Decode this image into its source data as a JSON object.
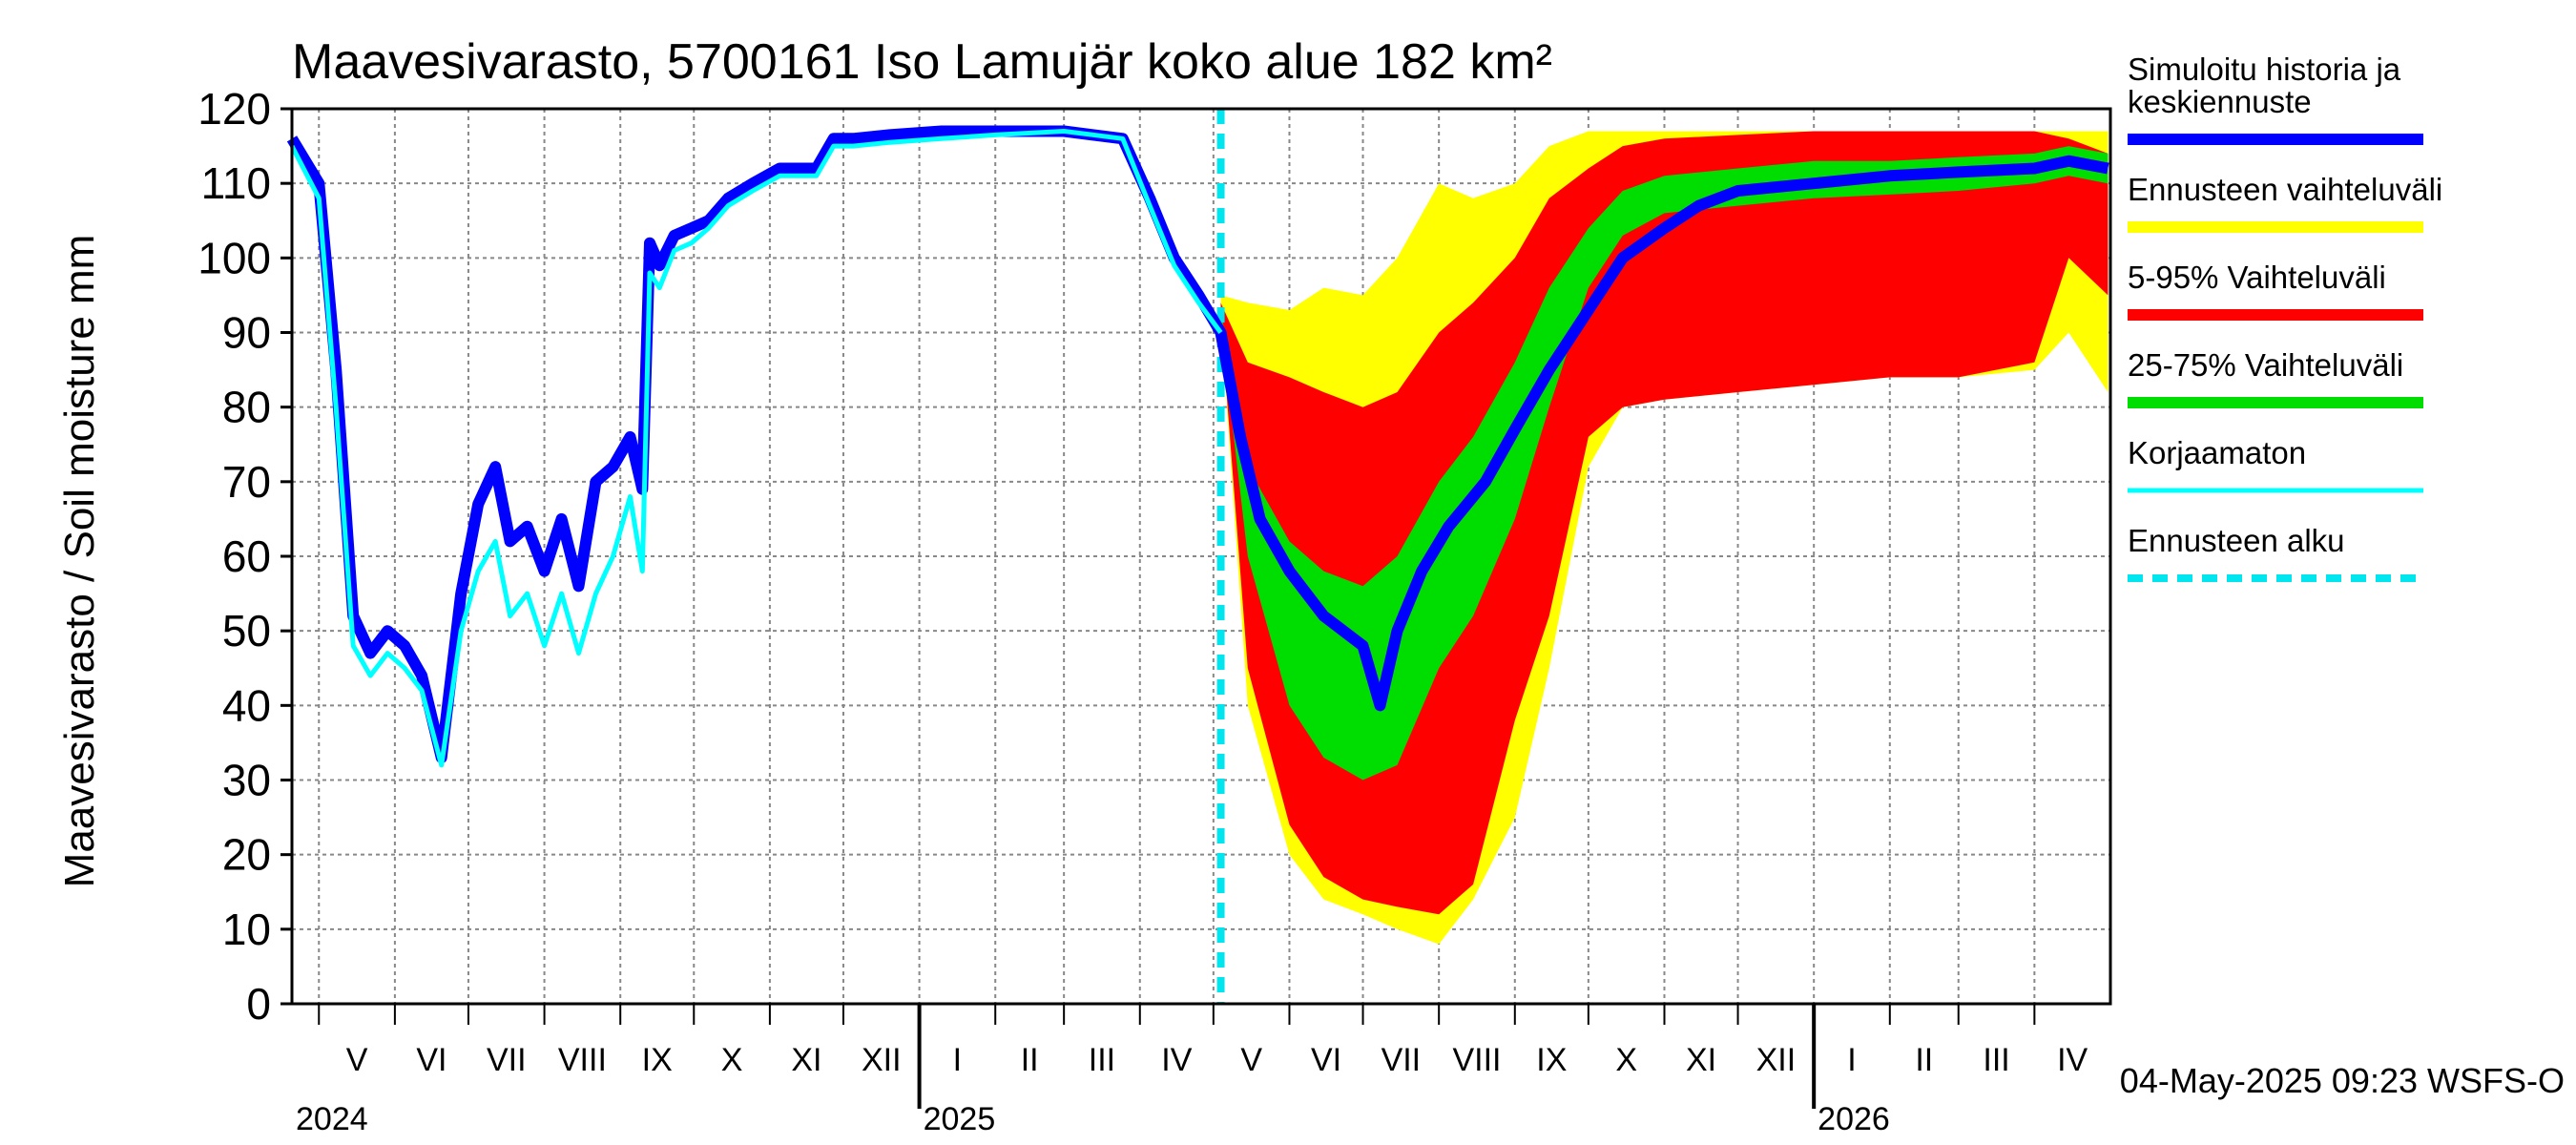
{
  "chart_data": {
    "type": "area",
    "title": "Maavesivarasto, 5700161 Iso Lamujär koko alue 182 km²",
    "ylabel": "Maavesivarasto / Soil moisture   mm",
    "xlabel": "",
    "ylim": [
      0,
      120
    ],
    "yticks": [
      0,
      10,
      20,
      30,
      40,
      50,
      60,
      70,
      80,
      90,
      100,
      110,
      120
    ],
    "xlim": [
      "2024-04-20",
      "2026-05-02"
    ],
    "grid": true,
    "legend_placement": "right",
    "forecast_start": "2025-05-04",
    "timestamp": "04-May-2025 09:23 WSFS-O",
    "months": [
      {
        "label": "V",
        "start": "2024-05-01"
      },
      {
        "label": "VI",
        "start": "2024-06-01"
      },
      {
        "label": "VII",
        "start": "2024-07-01"
      },
      {
        "label": "VIII",
        "start": "2024-08-01"
      },
      {
        "label": "IX",
        "start": "2024-09-01"
      },
      {
        "label": "X",
        "start": "2024-10-01"
      },
      {
        "label": "XI",
        "start": "2024-11-01"
      },
      {
        "label": "XII",
        "start": "2024-12-01"
      },
      {
        "label": "I",
        "start": "2025-01-01"
      },
      {
        "label": "II",
        "start": "2025-02-01"
      },
      {
        "label": "III",
        "start": "2025-03-01"
      },
      {
        "label": "IV",
        "start": "2025-04-01"
      },
      {
        "label": "V",
        "start": "2025-05-01"
      },
      {
        "label": "VI",
        "start": "2025-06-01"
      },
      {
        "label": "VII",
        "start": "2025-07-01"
      },
      {
        "label": "VIII",
        "start": "2025-08-01"
      },
      {
        "label": "IX",
        "start": "2025-09-01"
      },
      {
        "label": "X",
        "start": "2025-10-01"
      },
      {
        "label": "XI",
        "start": "2025-11-01"
      },
      {
        "label": "XII",
        "start": "2025-12-01"
      },
      {
        "label": "I",
        "start": "2026-01-01"
      },
      {
        "label": "II",
        "start": "2026-02-01"
      },
      {
        "label": "III",
        "start": "2026-03-01"
      },
      {
        "label": "IV",
        "start": "2026-04-01"
      }
    ],
    "years": [
      {
        "label": "2024",
        "start": "2024-04-20"
      },
      {
        "label": "2025",
        "start": "2025-01-01"
      },
      {
        "label": "2026",
        "start": "2026-01-01"
      }
    ],
    "legend": [
      {
        "label": "Simuloitu historia ja keskiennuste",
        "color": "#0000ff",
        "style": "solid"
      },
      {
        "label": "Ennusteen vaihteluväli",
        "color": "#ffff00",
        "style": "solid"
      },
      {
        "label": "5-95% Vaihteluväli",
        "color": "#ff0000",
        "style": "solid"
      },
      {
        "label": "25-75% Vaihteluväli",
        "color": "#00dd00",
        "style": "solid"
      },
      {
        "label": "Korjaamaton",
        "color": "#00ffff",
        "style": "solid"
      },
      {
        "label": "Ennusteen alku",
        "color": "#00e5ee",
        "style": "dashed"
      }
    ],
    "series": [
      {
        "name": "Simuloitu historia ja keskiennuste",
        "color": "#0000ff",
        "x": [
          "2024-04-20",
          "2024-05-01",
          "2024-05-08",
          "2024-05-15",
          "2024-05-22",
          "2024-05-29",
          "2024-06-05",
          "2024-06-12",
          "2024-06-20",
          "2024-06-28",
          "2024-07-05",
          "2024-07-12",
          "2024-07-18",
          "2024-07-25",
          "2024-08-01",
          "2024-08-08",
          "2024-08-15",
          "2024-08-22",
          "2024-08-29",
          "2024-09-05",
          "2024-09-10",
          "2024-09-13",
          "2024-09-17",
          "2024-09-23",
          "2024-09-30",
          "2024-10-07",
          "2024-10-15",
          "2024-10-25",
          "2024-11-05",
          "2024-11-20",
          "2024-11-27",
          "2024-12-05",
          "2024-12-20",
          "2025-01-10",
          "2025-02-01",
          "2025-03-01",
          "2025-03-25",
          "2025-04-05",
          "2025-04-15",
          "2025-04-25",
          "2025-05-04",
          "2025-05-12",
          "2025-05-20",
          "2025-06-01",
          "2025-06-15",
          "2025-07-01",
          "2025-07-08",
          "2025-07-15",
          "2025-07-25",
          "2025-08-05",
          "2025-08-20",
          "2025-09-01",
          "2025-09-15",
          "2025-10-01",
          "2025-10-15",
          "2025-11-01",
          "2025-11-15",
          "2025-12-01",
          "2026-01-01",
          "2026-02-01",
          "2026-03-01",
          "2026-04-01",
          "2026-04-15",
          "2026-05-01"
        ],
        "y": [
          116,
          110,
          85,
          52,
          47,
          50,
          48,
          44,
          33,
          55,
          67,
          72,
          62,
          64,
          58,
          65,
          56,
          70,
          72,
          76,
          69,
          102,
          99,
          103,
          104,
          105,
          108,
          110,
          112,
          112,
          116,
          116,
          116.5,
          117,
          117,
          117,
          116,
          108,
          100,
          95,
          90,
          76,
          65,
          58,
          52,
          48,
          40,
          50,
          58,
          64,
          70,
          77,
          85,
          93,
          100,
          104,
          107,
          109,
          110,
          111,
          111.5,
          112,
          113,
          112
        ]
      },
      {
        "name": "Korjaamaton",
        "color": "#00ffff",
        "x": [
          "2024-04-20",
          "2024-05-01",
          "2024-05-08",
          "2024-05-15",
          "2024-05-22",
          "2024-05-29",
          "2024-06-05",
          "2024-06-12",
          "2024-06-20",
          "2024-06-28",
          "2024-07-05",
          "2024-07-12",
          "2024-07-18",
          "2024-07-25",
          "2024-08-01",
          "2024-08-08",
          "2024-08-15",
          "2024-08-22",
          "2024-08-29",
          "2024-09-05",
          "2024-09-10",
          "2024-09-13",
          "2024-09-17",
          "2024-09-23",
          "2024-09-30",
          "2024-10-07",
          "2024-10-15",
          "2024-10-25",
          "2024-11-05",
          "2024-11-20",
          "2024-11-27",
          "2024-12-05",
          "2024-12-20",
          "2025-01-10",
          "2025-02-01",
          "2025-03-01",
          "2025-03-25",
          "2025-04-05",
          "2025-04-15",
          "2025-04-25",
          "2025-05-04"
        ],
        "y": [
          115,
          108,
          80,
          48,
          44,
          47,
          45,
          42,
          32,
          50,
          58,
          62,
          52,
          55,
          48,
          55,
          47,
          55,
          60,
          68,
          58,
          98,
          96,
          101,
          102,
          104,
          107,
          109,
          111,
          111,
          115,
          115,
          115.5,
          116,
          116.5,
          117,
          116,
          107,
          99,
          94,
          90
        ]
      }
    ],
    "bands": [
      {
        "name": "Ennusteen vaihteluväli",
        "color": "#ffff00",
        "x": [
          "2025-05-04",
          "2025-05-15",
          "2025-06-01",
          "2025-06-15",
          "2025-07-01",
          "2025-07-15",
          "2025-08-01",
          "2025-08-15",
          "2025-09-01",
          "2025-09-15",
          "2025-10-01",
          "2025-10-15",
          "2025-11-01",
          "2025-12-01",
          "2026-01-01",
          "2026-02-01",
          "2026-03-01",
          "2026-04-01",
          "2026-04-15",
          "2026-05-01"
        ],
        "low": [
          92,
          40,
          20,
          14,
          12,
          10,
          8,
          14,
          25,
          45,
          72,
          80,
          81,
          82,
          83,
          84,
          84,
          85,
          90,
          82
        ],
        "high": [
          95,
          94,
          93,
          96,
          95,
          100,
          110,
          108,
          110,
          115,
          117,
          117,
          117,
          117,
          117,
          117,
          117,
          117,
          117,
          117
        ]
      },
      {
        "name": "5-95% Vaihteluväli",
        "color": "#ff0000",
        "x": [
          "2025-05-04",
          "2025-05-15",
          "2025-06-01",
          "2025-06-15",
          "2025-07-01",
          "2025-07-15",
          "2025-08-01",
          "2025-08-15",
          "2025-09-01",
          "2025-09-15",
          "2025-10-01",
          "2025-10-15",
          "2025-11-01",
          "2025-12-01",
          "2026-01-01",
          "2026-02-01",
          "2026-03-01",
          "2026-04-01",
          "2026-04-15",
          "2026-05-01"
        ],
        "low": [
          92,
          45,
          24,
          17,
          14,
          13,
          12,
          16,
          38,
          52,
          76,
          80,
          81,
          82,
          83,
          84,
          84,
          86,
          100,
          95
        ],
        "high": [
          94,
          86,
          84,
          82,
          80,
          82,
          90,
          94,
          100,
          108,
          112,
          115,
          116,
          116.5,
          117,
          117,
          117,
          117,
          116,
          114
        ]
      },
      {
        "name": "25-75% Vaihteluväli",
        "color": "#00dd00",
        "x": [
          "2025-05-04",
          "2025-05-15",
          "2025-06-01",
          "2025-06-15",
          "2025-07-01",
          "2025-07-15",
          "2025-08-01",
          "2025-08-15",
          "2025-09-01",
          "2025-09-15",
          "2025-10-01",
          "2025-10-15",
          "2025-11-01",
          "2025-12-01",
          "2026-01-01",
          "2026-02-01",
          "2026-03-01",
          "2026-04-01",
          "2026-04-15",
          "2026-05-01"
        ],
        "low": [
          91,
          60,
          40,
          33,
          30,
          32,
          45,
          52,
          65,
          80,
          96,
          103,
          106,
          107,
          108,
          108.5,
          109,
          110,
          111,
          110
        ],
        "high": [
          93,
          72,
          62,
          58,
          56,
          60,
          70,
          76,
          86,
          96,
          104,
          109,
          111,
          112,
          113,
          113,
          113.5,
          114,
          115,
          114
        ]
      }
    ]
  }
}
